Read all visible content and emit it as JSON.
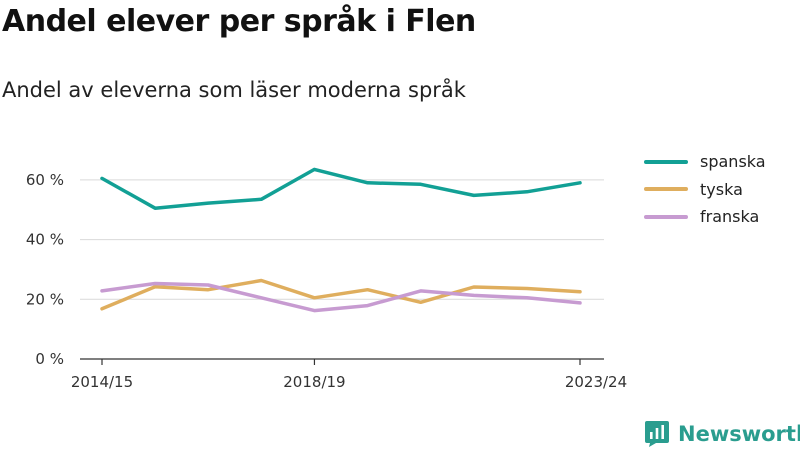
{
  "title": "Andel elever per språk i Flen",
  "subtitle": "Andel av eleverna som läser moderna språk",
  "brand": {
    "name": "Newsworthy",
    "logo_icon": "newsworthy-logo-icon",
    "color": "#2a9d8f"
  },
  "chart_data": {
    "type": "line",
    "title": "Andel elever per språk i Flen",
    "subtitle": "Andel av eleverna som läser moderna språk",
    "x": [
      "2014/15",
      "2015/16",
      "2016/17",
      "2017/18",
      "2018/19",
      "2019/20",
      "2020/21",
      "2021/22",
      "2022/23",
      "2023/24"
    ],
    "x_tick_labels": [
      "2014/15",
      "",
      "",
      "",
      "2018/19",
      "",
      "",
      "",
      "",
      "2023/24"
    ],
    "y_ticks": [
      0,
      20,
      40,
      60
    ],
    "y_tick_labels": [
      "0 %",
      "20 %",
      "40 %",
      "60 %"
    ],
    "ylim": [
      0,
      70
    ],
    "grid": true,
    "legend_position": "right",
    "series": [
      {
        "name": "spanska",
        "color": "#12a095",
        "values": [
          60.5,
          50.5,
          52.2,
          53.5,
          63.5,
          59.0,
          58.5,
          54.8,
          56.0,
          59.0
        ]
      },
      {
        "name": "tyska",
        "color": "#dfae5e",
        "values": [
          16.8,
          24.2,
          23.2,
          26.3,
          20.5,
          23.2,
          19.0,
          24.1,
          23.6,
          22.5
        ]
      },
      {
        "name": "franska",
        "color": "#c79bd1",
        "values": [
          22.8,
          25.3,
          24.8,
          20.5,
          16.2,
          17.9,
          22.8,
          21.3,
          20.5,
          18.8
        ]
      }
    ]
  }
}
